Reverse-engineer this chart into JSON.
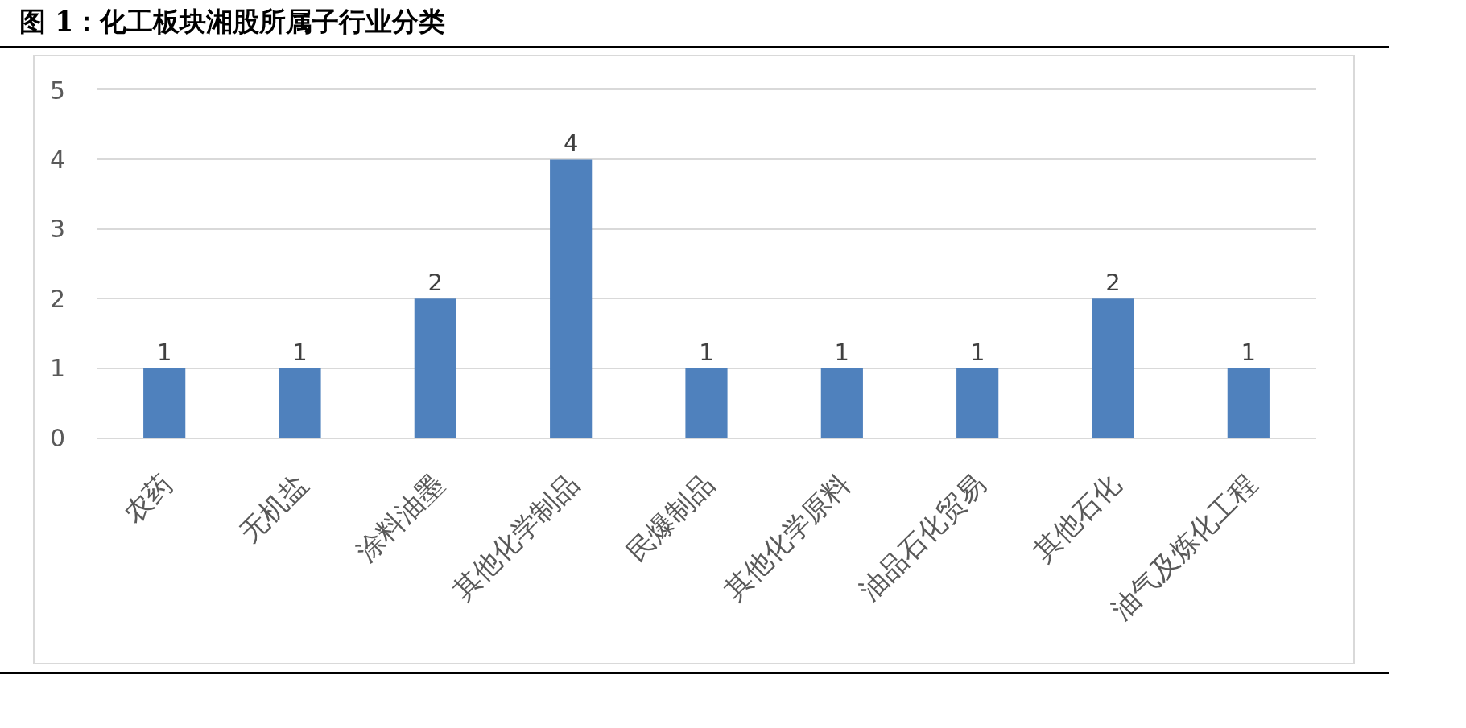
{
  "chart_data": {
    "type": "bar",
    "title": "图 1：化工板块湘股所属子行业分类",
    "categories": [
      "农药",
      "无机盐",
      "涂料油墨",
      "其他化学制品",
      "民爆制品",
      "其他化学原料",
      "油品石化贸易",
      "其他石化",
      "油气及炼化工程"
    ],
    "values": [
      1,
      1,
      2,
      4,
      1,
      1,
      1,
      2,
      1
    ],
    "color": "#4f81bd",
    "ylim": [
      0,
      5
    ],
    "yticks": [
      0,
      1,
      2,
      3,
      4,
      5
    ],
    "grid": "y",
    "data_labels": true
  }
}
